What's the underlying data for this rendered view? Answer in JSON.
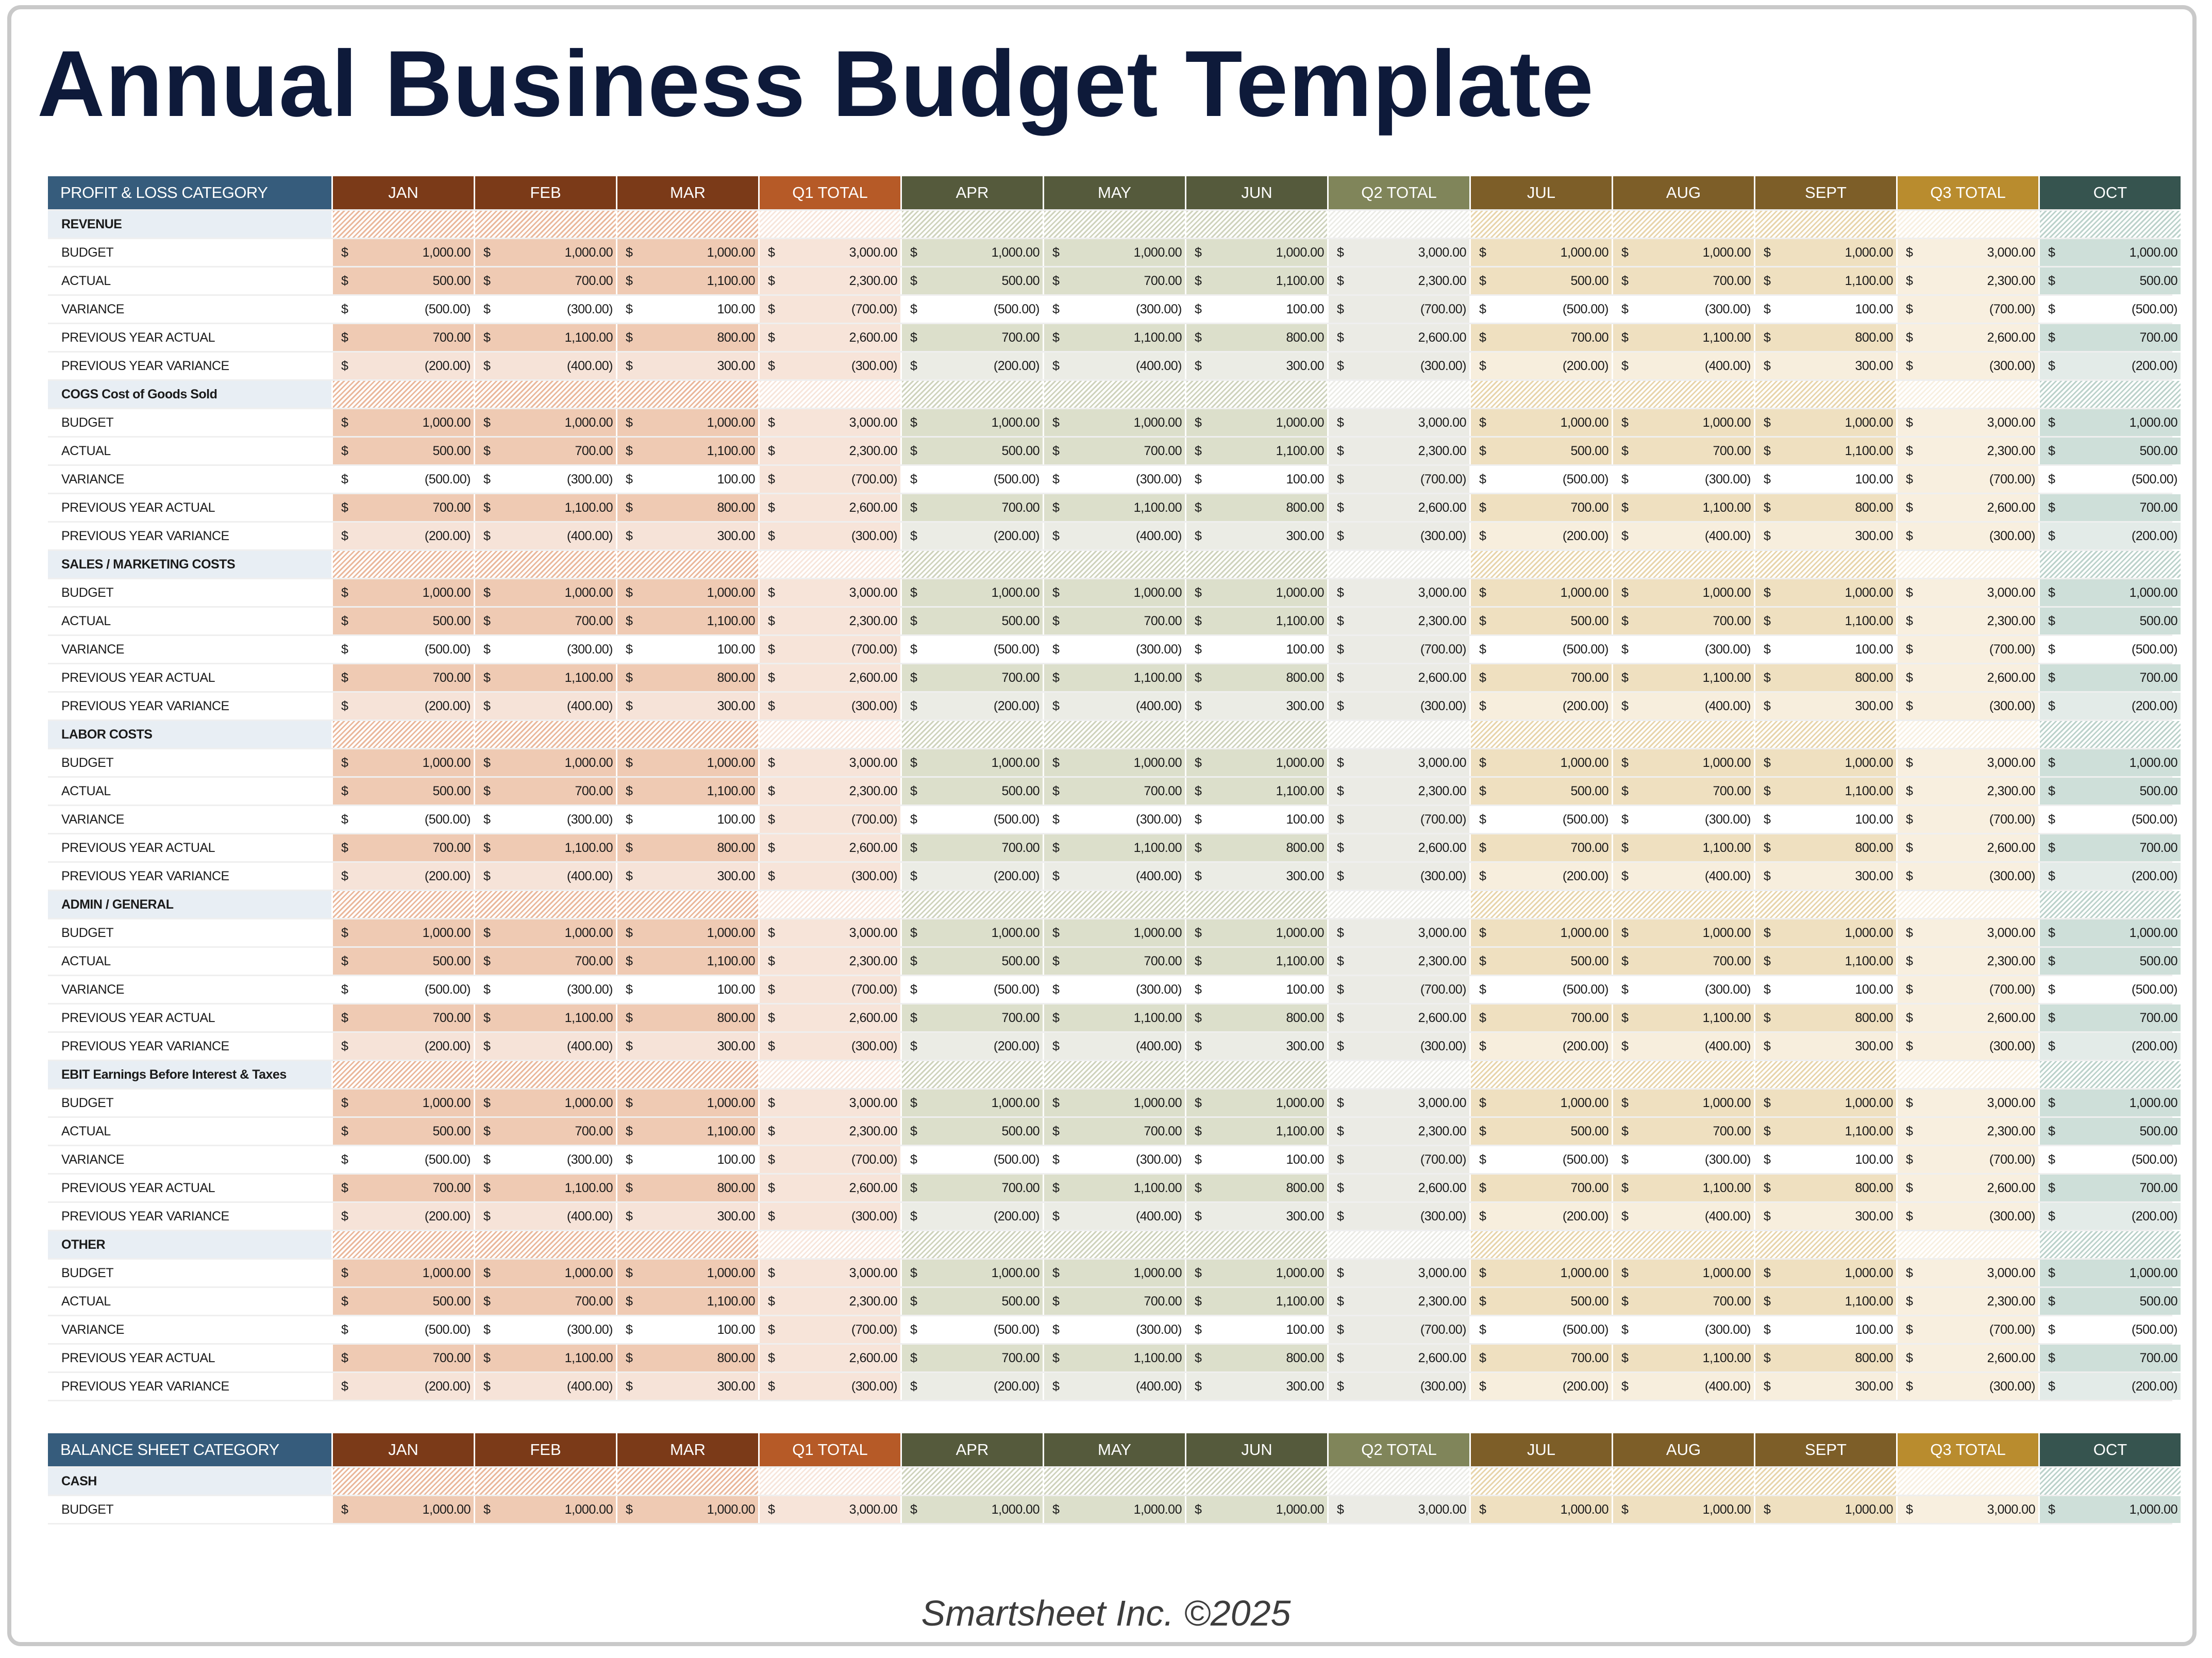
{
  "title": "Annual Business Budget Template",
  "footer": "Smartsheet Inc. ©2025",
  "currency_symbol": "$",
  "columns": [
    {
      "label": "JAN",
      "quarter": "q1",
      "total": false
    },
    {
      "label": "FEB",
      "quarter": "q1",
      "total": false
    },
    {
      "label": "MAR",
      "quarter": "q1",
      "total": false
    },
    {
      "label": "Q1 TOTAL",
      "quarter": "q1",
      "total": true
    },
    {
      "label": "APR",
      "quarter": "q2",
      "total": false
    },
    {
      "label": "MAY",
      "quarter": "q2",
      "total": false
    },
    {
      "label": "JUN",
      "quarter": "q2",
      "total": false
    },
    {
      "label": "Q2 TOTAL",
      "quarter": "q2",
      "total": true
    },
    {
      "label": "JUL",
      "quarter": "q3",
      "total": false
    },
    {
      "label": "AUG",
      "quarter": "q3",
      "total": false
    },
    {
      "label": "SEPT",
      "quarter": "q3",
      "total": false
    },
    {
      "label": "Q3 TOTAL",
      "quarter": "q3",
      "total": true
    },
    {
      "label": "OCT",
      "quarter": "q4",
      "total": false
    }
  ],
  "colors": {
    "category_header": "#365c7c",
    "category_label_bg": "#e8eef4",
    "q1": {
      "header": "#7b3a18",
      "total_header": "#b65a27",
      "main": "#efcab3",
      "soft": "#f6e3d8",
      "total": "#f7e4d9",
      "hatch": "#eab89c"
    },
    "q2": {
      "header": "#555a3c",
      "total_header": "#80855a",
      "main": "#dcdfcb",
      "soft": "#ebece5",
      "total": "#ebebe5",
      "hatch": "#cfd3bd"
    },
    "q3": {
      "header": "#7d5e28",
      "total_header": "#b98c2e",
      "main": "#efe0c0",
      "soft": "#f7eedd",
      "total": "#f8efdf",
      "hatch": "#e8d5ac"
    },
    "q4": {
      "header": "#36544f",
      "total_header": "#36544f",
      "main": "#cedfd9",
      "soft": "#e3ebe8",
      "total": "#e3ebe8",
      "hatch": "#bcd2cb"
    }
  },
  "profit_loss": {
    "header": "PROFIT & LOSS CATEGORY",
    "groups": [
      {
        "name": "REVENUE",
        "rows": [
          {
            "label": "BUDGET",
            "values": [
              "1,000.00",
              "1,000.00",
              "1,000.00",
              "3,000.00",
              "1,000.00",
              "1,000.00",
              "1,000.00",
              "3,000.00",
              "1,000.00",
              "1,000.00",
              "1,000.00",
              "3,000.00",
              "1,000.00"
            ]
          },
          {
            "label": "ACTUAL",
            "values": [
              "500.00",
              "700.00",
              "1,100.00",
              "2,300.00",
              "500.00",
              "700.00",
              "1,100.00",
              "2,300.00",
              "500.00",
              "700.00",
              "1,100.00",
              "2,300.00",
              "500.00"
            ]
          },
          {
            "label": "VARIANCE",
            "values": [
              "(500.00)",
              "(300.00)",
              "100.00",
              "(700.00)",
              "(500.00)",
              "(300.00)",
              "100.00",
              "(700.00)",
              "(500.00)",
              "(300.00)",
              "100.00",
              "(700.00)",
              "(500.00)"
            ]
          },
          {
            "label": "PREVIOUS YEAR ACTUAL",
            "values": [
              "700.00",
              "1,100.00",
              "800.00",
              "2,600.00",
              "700.00",
              "1,100.00",
              "800.00",
              "2,600.00",
              "700.00",
              "1,100.00",
              "800.00",
              "2,600.00",
              "700.00"
            ]
          },
          {
            "label": "PREVIOUS YEAR VARIANCE",
            "values": [
              "(200.00)",
              "(400.00)",
              "300.00",
              "(300.00)",
              "(200.00)",
              "(400.00)",
              "300.00",
              "(300.00)",
              "(200.00)",
              "(400.00)",
              "300.00",
              "(300.00)",
              "(200.00)"
            ]
          }
        ]
      },
      {
        "name": "COGS Cost of Goods Sold",
        "rows": [
          {
            "label": "BUDGET",
            "values": [
              "1,000.00",
              "1,000.00",
              "1,000.00",
              "3,000.00",
              "1,000.00",
              "1,000.00",
              "1,000.00",
              "3,000.00",
              "1,000.00",
              "1,000.00",
              "1,000.00",
              "3,000.00",
              "1,000.00"
            ]
          },
          {
            "label": "ACTUAL",
            "values": [
              "500.00",
              "700.00",
              "1,100.00",
              "2,300.00",
              "500.00",
              "700.00",
              "1,100.00",
              "2,300.00",
              "500.00",
              "700.00",
              "1,100.00",
              "2,300.00",
              "500.00"
            ]
          },
          {
            "label": "VARIANCE",
            "values": [
              "(500.00)",
              "(300.00)",
              "100.00",
              "(700.00)",
              "(500.00)",
              "(300.00)",
              "100.00",
              "(700.00)",
              "(500.00)",
              "(300.00)",
              "100.00",
              "(700.00)",
              "(500.00)"
            ]
          },
          {
            "label": "PREVIOUS YEAR ACTUAL",
            "values": [
              "700.00",
              "1,100.00",
              "800.00",
              "2,600.00",
              "700.00",
              "1,100.00",
              "800.00",
              "2,600.00",
              "700.00",
              "1,100.00",
              "800.00",
              "2,600.00",
              "700.00"
            ]
          },
          {
            "label": "PREVIOUS YEAR VARIANCE",
            "values": [
              "(200.00)",
              "(400.00)",
              "300.00",
              "(300.00)",
              "(200.00)",
              "(400.00)",
              "300.00",
              "(300.00)",
              "(200.00)",
              "(400.00)",
              "300.00",
              "(300.00)",
              "(200.00)"
            ]
          }
        ]
      },
      {
        "name": "SALES / MARKETING COSTS",
        "rows": [
          {
            "label": "BUDGET",
            "values": [
              "1,000.00",
              "1,000.00",
              "1,000.00",
              "3,000.00",
              "1,000.00",
              "1,000.00",
              "1,000.00",
              "3,000.00",
              "1,000.00",
              "1,000.00",
              "1,000.00",
              "3,000.00",
              "1,000.00"
            ]
          },
          {
            "label": "ACTUAL",
            "values": [
              "500.00",
              "700.00",
              "1,100.00",
              "2,300.00",
              "500.00",
              "700.00",
              "1,100.00",
              "2,300.00",
              "500.00",
              "700.00",
              "1,100.00",
              "2,300.00",
              "500.00"
            ]
          },
          {
            "label": "VARIANCE",
            "values": [
              "(500.00)",
              "(300.00)",
              "100.00",
              "(700.00)",
              "(500.00)",
              "(300.00)",
              "100.00",
              "(700.00)",
              "(500.00)",
              "(300.00)",
              "100.00",
              "(700.00)",
              "(500.00)"
            ]
          },
          {
            "label": "PREVIOUS YEAR ACTUAL",
            "values": [
              "700.00",
              "1,100.00",
              "800.00",
              "2,600.00",
              "700.00",
              "1,100.00",
              "800.00",
              "2,600.00",
              "700.00",
              "1,100.00",
              "800.00",
              "2,600.00",
              "700.00"
            ]
          },
          {
            "label": "PREVIOUS YEAR VARIANCE",
            "values": [
              "(200.00)",
              "(400.00)",
              "300.00",
              "(300.00)",
              "(200.00)",
              "(400.00)",
              "300.00",
              "(300.00)",
              "(200.00)",
              "(400.00)",
              "300.00",
              "(300.00)",
              "(200.00)"
            ]
          }
        ]
      },
      {
        "name": "LABOR COSTS",
        "rows": [
          {
            "label": "BUDGET",
            "values": [
              "1,000.00",
              "1,000.00",
              "1,000.00",
              "3,000.00",
              "1,000.00",
              "1,000.00",
              "1,000.00",
              "3,000.00",
              "1,000.00",
              "1,000.00",
              "1,000.00",
              "3,000.00",
              "1,000.00"
            ]
          },
          {
            "label": "ACTUAL",
            "values": [
              "500.00",
              "700.00",
              "1,100.00",
              "2,300.00",
              "500.00",
              "700.00",
              "1,100.00",
              "2,300.00",
              "500.00",
              "700.00",
              "1,100.00",
              "2,300.00",
              "500.00"
            ]
          },
          {
            "label": "VARIANCE",
            "values": [
              "(500.00)",
              "(300.00)",
              "100.00",
              "(700.00)",
              "(500.00)",
              "(300.00)",
              "100.00",
              "(700.00)",
              "(500.00)",
              "(300.00)",
              "100.00",
              "(700.00)",
              "(500.00)"
            ]
          },
          {
            "label": "PREVIOUS YEAR ACTUAL",
            "values": [
              "700.00",
              "1,100.00",
              "800.00",
              "2,600.00",
              "700.00",
              "1,100.00",
              "800.00",
              "2,600.00",
              "700.00",
              "1,100.00",
              "800.00",
              "2,600.00",
              "700.00"
            ]
          },
          {
            "label": "PREVIOUS YEAR VARIANCE",
            "values": [
              "(200.00)",
              "(400.00)",
              "300.00",
              "(300.00)",
              "(200.00)",
              "(400.00)",
              "300.00",
              "(300.00)",
              "(200.00)",
              "(400.00)",
              "300.00",
              "(300.00)",
              "(200.00)"
            ]
          }
        ]
      },
      {
        "name": "ADMIN / GENERAL",
        "rows": [
          {
            "label": "BUDGET",
            "values": [
              "1,000.00",
              "1,000.00",
              "1,000.00",
              "3,000.00",
              "1,000.00",
              "1,000.00",
              "1,000.00",
              "3,000.00",
              "1,000.00",
              "1,000.00",
              "1,000.00",
              "3,000.00",
              "1,000.00"
            ]
          },
          {
            "label": "ACTUAL",
            "values": [
              "500.00",
              "700.00",
              "1,100.00",
              "2,300.00",
              "500.00",
              "700.00",
              "1,100.00",
              "2,300.00",
              "500.00",
              "700.00",
              "1,100.00",
              "2,300.00",
              "500.00"
            ]
          },
          {
            "label": "VARIANCE",
            "values": [
              "(500.00)",
              "(300.00)",
              "100.00",
              "(700.00)",
              "(500.00)",
              "(300.00)",
              "100.00",
              "(700.00)",
              "(500.00)",
              "(300.00)",
              "100.00",
              "(700.00)",
              "(500.00)"
            ]
          },
          {
            "label": "PREVIOUS YEAR ACTUAL",
            "values": [
              "700.00",
              "1,100.00",
              "800.00",
              "2,600.00",
              "700.00",
              "1,100.00",
              "800.00",
              "2,600.00",
              "700.00",
              "1,100.00",
              "800.00",
              "2,600.00",
              "700.00"
            ]
          },
          {
            "label": "PREVIOUS YEAR VARIANCE",
            "values": [
              "(200.00)",
              "(400.00)",
              "300.00",
              "(300.00)",
              "(200.00)",
              "(400.00)",
              "300.00",
              "(300.00)",
              "(200.00)",
              "(400.00)",
              "300.00",
              "(300.00)",
              "(200.00)"
            ]
          }
        ]
      },
      {
        "name": "EBIT Earnings Before Interest & Taxes",
        "rows": [
          {
            "label": "BUDGET",
            "values": [
              "1,000.00",
              "1,000.00",
              "1,000.00",
              "3,000.00",
              "1,000.00",
              "1,000.00",
              "1,000.00",
              "3,000.00",
              "1,000.00",
              "1,000.00",
              "1,000.00",
              "3,000.00",
              "1,000.00"
            ]
          },
          {
            "label": "ACTUAL",
            "values": [
              "500.00",
              "700.00",
              "1,100.00",
              "2,300.00",
              "500.00",
              "700.00",
              "1,100.00",
              "2,300.00",
              "500.00",
              "700.00",
              "1,100.00",
              "2,300.00",
              "500.00"
            ]
          },
          {
            "label": "VARIANCE",
            "values": [
              "(500.00)",
              "(300.00)",
              "100.00",
              "(700.00)",
              "(500.00)",
              "(300.00)",
              "100.00",
              "(700.00)",
              "(500.00)",
              "(300.00)",
              "100.00",
              "(700.00)",
              "(500.00)"
            ]
          },
          {
            "label": "PREVIOUS YEAR ACTUAL",
            "values": [
              "700.00",
              "1,100.00",
              "800.00",
              "2,600.00",
              "700.00",
              "1,100.00",
              "800.00",
              "2,600.00",
              "700.00",
              "1,100.00",
              "800.00",
              "2,600.00",
              "700.00"
            ]
          },
          {
            "label": "PREVIOUS YEAR VARIANCE",
            "values": [
              "(200.00)",
              "(400.00)",
              "300.00",
              "(300.00)",
              "(200.00)",
              "(400.00)",
              "300.00",
              "(300.00)",
              "(200.00)",
              "(400.00)",
              "300.00",
              "(300.00)",
              "(200.00)"
            ]
          }
        ]
      },
      {
        "name": "OTHER",
        "rows": [
          {
            "label": "BUDGET",
            "values": [
              "1,000.00",
              "1,000.00",
              "1,000.00",
              "3,000.00",
              "1,000.00",
              "1,000.00",
              "1,000.00",
              "3,000.00",
              "1,000.00",
              "1,000.00",
              "1,000.00",
              "3,000.00",
              "1,000.00"
            ]
          },
          {
            "label": "ACTUAL",
            "values": [
              "500.00",
              "700.00",
              "1,100.00",
              "2,300.00",
              "500.00",
              "700.00",
              "1,100.00",
              "2,300.00",
              "500.00",
              "700.00",
              "1,100.00",
              "2,300.00",
              "500.00"
            ]
          },
          {
            "label": "VARIANCE",
            "values": [
              "(500.00)",
              "(300.00)",
              "100.00",
              "(700.00)",
              "(500.00)",
              "(300.00)",
              "100.00",
              "(700.00)",
              "(500.00)",
              "(300.00)",
              "100.00",
              "(700.00)",
              "(500.00)"
            ]
          },
          {
            "label": "PREVIOUS YEAR ACTUAL",
            "values": [
              "700.00",
              "1,100.00",
              "800.00",
              "2,600.00",
              "700.00",
              "1,100.00",
              "800.00",
              "2,600.00",
              "700.00",
              "1,100.00",
              "800.00",
              "2,600.00",
              "700.00"
            ]
          },
          {
            "label": "PREVIOUS YEAR VARIANCE",
            "values": [
              "(200.00)",
              "(400.00)",
              "300.00",
              "(300.00)",
              "(200.00)",
              "(400.00)",
              "300.00",
              "(300.00)",
              "(200.00)",
              "(400.00)",
              "300.00",
              "(300.00)",
              "(200.00)"
            ]
          }
        ]
      }
    ]
  },
  "balance_sheet": {
    "header": "BALANCE SHEET CATEGORY",
    "groups": [
      {
        "name": "CASH",
        "rows": [
          {
            "label": "BUDGET",
            "values": [
              "1,000.00",
              "1,000.00",
              "1,000.00",
              "3,000.00",
              "1,000.00",
              "1,000.00",
              "1,000.00",
              "3,000.00",
              "1,000.00",
              "1,000.00",
              "1,000.00",
              "3,000.00",
              "1,000.00"
            ]
          }
        ]
      }
    ]
  }
}
